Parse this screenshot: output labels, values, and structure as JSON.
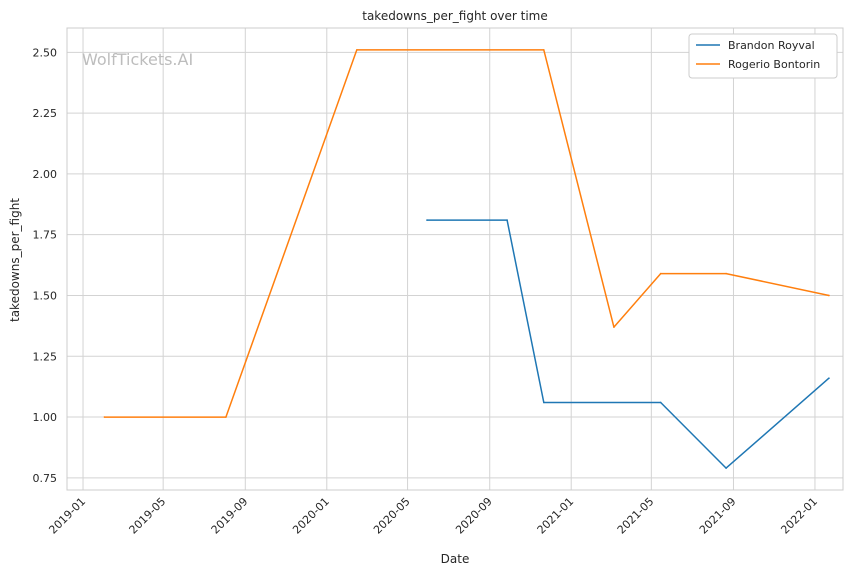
{
  "chart_data": {
    "type": "line",
    "title": "takedowns_per_fight over time",
    "xlabel": "Date",
    "ylabel": "takedowns_per_fight",
    "watermark": "WolfTickets.AI",
    "x_ticks": [
      "2019-01",
      "2019-05",
      "2019-09",
      "2020-01",
      "2020-05",
      "2020-09",
      "2021-01",
      "2021-05",
      "2021-09",
      "2022-01"
    ],
    "y_ticks": [
      "0.75",
      "1.00",
      "1.25",
      "1.50",
      "1.75",
      "2.00",
      "2.25",
      "2.50"
    ],
    "xlim": [
      "2018-12-08",
      "2022-02-12"
    ],
    "ylim": [
      0.7,
      2.6
    ],
    "grid": true,
    "legend_position": "top-right",
    "series": [
      {
        "name": "Brandon Royval",
        "color": "#1f77b4",
        "points": [
          {
            "x": "2020-05-30",
            "y": 1.81
          },
          {
            "x": "2020-09-27",
            "y": 1.81
          },
          {
            "x": "2020-11-21",
            "y": 1.06
          },
          {
            "x": "2021-05-15",
            "y": 1.06
          },
          {
            "x": "2021-08-21",
            "y": 0.79
          },
          {
            "x": "2022-01-22",
            "y": 1.16
          }
        ]
      },
      {
        "name": "Rogerio Bontorin",
        "color": "#ff7f0e",
        "points": [
          {
            "x": "2019-02-02",
            "y": 1.0
          },
          {
            "x": "2019-08-03",
            "y": 1.0
          },
          {
            "x": "2020-02-15",
            "y": 2.51
          },
          {
            "x": "2020-11-21",
            "y": 2.51
          },
          {
            "x": "2021-03-06",
            "y": 1.37
          },
          {
            "x": "2021-05-15",
            "y": 1.59
          },
          {
            "x": "2021-08-21",
            "y": 1.59
          },
          {
            "x": "2022-01-22",
            "y": 1.5
          }
        ]
      }
    ]
  }
}
